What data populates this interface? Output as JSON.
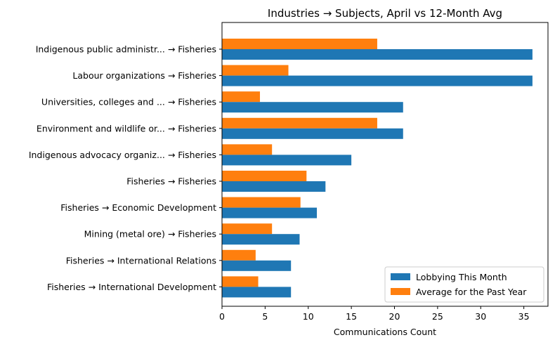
{
  "chart_data": {
    "type": "bar",
    "orientation": "horizontal",
    "title": "Industries → Subjects, April vs 12-Month Avg",
    "xlabel": "Communications Count",
    "ylabel": "",
    "xlim": [
      0,
      37.8
    ],
    "xticks": [
      0,
      5,
      10,
      15,
      20,
      25,
      30,
      35
    ],
    "grid": false,
    "legend_position": "lower-right",
    "categories": [
      "Indigenous public administr... → Fisheries",
      "Labour organizations → Fisheries",
      "Universities, colleges and ... → Fisheries",
      "Environment and wildlife or... → Fisheries",
      "Indigenous advocacy organiz... → Fisheries",
      "Fisheries → Fisheries",
      "Fisheries → Economic Development",
      "Mining (metal ore) → Fisheries",
      "Fisheries → International Relations",
      "Fisheries → International Development"
    ],
    "series": [
      {
        "name": "Lobbying This Month",
        "color": "#1f77b4",
        "values": [
          36,
          36,
          21,
          21,
          15,
          12,
          11,
          9,
          8,
          8
        ]
      },
      {
        "name": "Average for the Past Year",
        "color": "#ff7f0e",
        "values": [
          18,
          7.7,
          4.4,
          18,
          5.8,
          9.8,
          9.1,
          5.8,
          3.9,
          4.2
        ]
      }
    ]
  }
}
